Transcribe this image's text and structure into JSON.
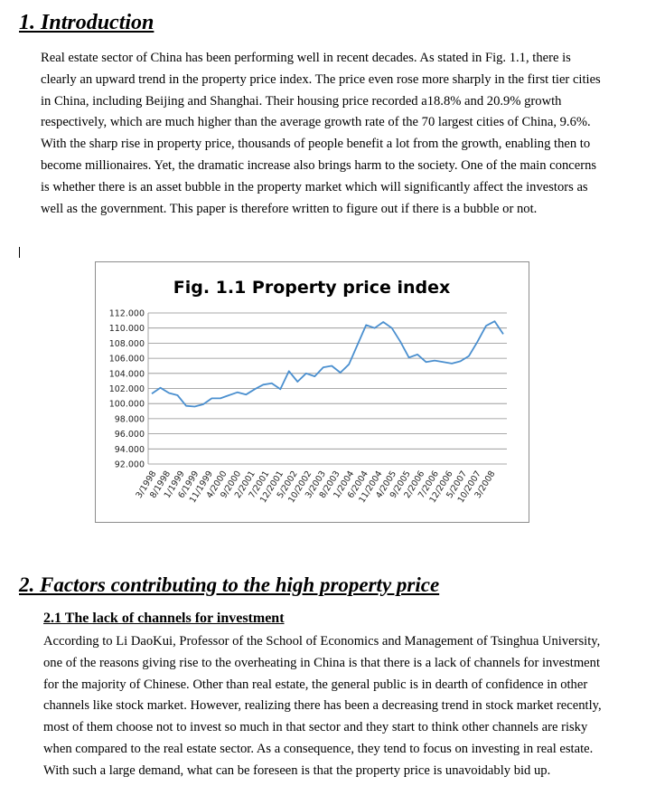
{
  "section1": {
    "heading": "1. Introduction",
    "paragraph": "Real estate sector of China has been performing well in recent decades. As stated in Fig. 1.1, there is clearly an upward trend in the property price index. The price even rose more sharply in the first tier cities in China, including Beijing and Shanghai. Their housing price recorded a18.8% and 20.9% growth respectively, which are much higher than the average growth rate of the 70 largest cities of China, 9.6%. With the sharp rise in property price, thousands of people benefit a lot from the growth, enabling then to become millionaires. Yet, the dramatic increase also brings harm to the society. One of the main concerns is whether there is an asset bubble in the property market which will significantly affect the investors as well as the government. This paper is therefore written to figure out if there is a bubble or not."
  },
  "chart_data": {
    "type": "line",
    "title": "Fig. 1.1 Property price index",
    "xlabel": "",
    "ylabel": "",
    "ylim": [
      92,
      112
    ],
    "yticks": [
      "112.000",
      "110.000",
      "108.000",
      "106.000",
      "104.000",
      "102.000",
      "100.000",
      "98.000",
      "96.000",
      "94.000",
      "92.000"
    ],
    "xtick_labels": [
      "3/1998",
      "8/1998",
      "1/1999",
      "6/1999",
      "11/1999",
      "4/2000",
      "9/2000",
      "2/2001",
      "7/2001",
      "12/2001",
      "5/2002",
      "10/2002",
      "3/2003",
      "8/2003",
      "1/2004",
      "6/2004",
      "11/2004",
      "4/2005",
      "9/2005",
      "2/2006",
      "7/2006",
      "12/2006",
      "5/2007",
      "10/2007",
      "3/2008"
    ],
    "grid": true,
    "legend": "none",
    "line_color": "#4a8fcf",
    "series": [
      {
        "values": [
          101.3,
          102.1,
          101.4,
          101.1,
          99.7,
          99.6,
          99.9,
          100.7,
          100.7,
          101.1,
          101.5,
          101.2,
          101.9,
          102.5,
          102.7,
          101.9,
          104.3,
          102.9,
          104.0,
          103.6,
          104.8,
          105.0,
          104.1,
          105.2,
          107.8,
          110.4,
          110.0,
          110.8,
          110.0,
          108.2,
          106.1,
          106.5,
          105.5,
          105.7,
          105.5,
          105.3,
          105.6,
          106.3,
          108.2,
          110.3,
          110.9,
          109.2
        ]
      }
    ]
  },
  "section2": {
    "heading": "2. Factors contributing to the high property price",
    "subheading": "2.1 The lack of channels for investment",
    "paragraph": "According to Li DaoKui, Professor of the School of Economics and Management of Tsinghua University, one of the reasons giving rise to the overheating in China is that there is a lack of channels for investment for the majority of Chinese. Other than real estate, the general public is in dearth of confidence in other channels like stock market. However, realizing there has been a decreasing trend in stock market recently, most of them choose not to invest so much in that sector and they start to think other channels are risky when compared to the real estate sector. As a consequence, they tend to focus on investing in real estate. With such a large demand, what can be foreseen is that the property price is unavoidably bid up."
  }
}
